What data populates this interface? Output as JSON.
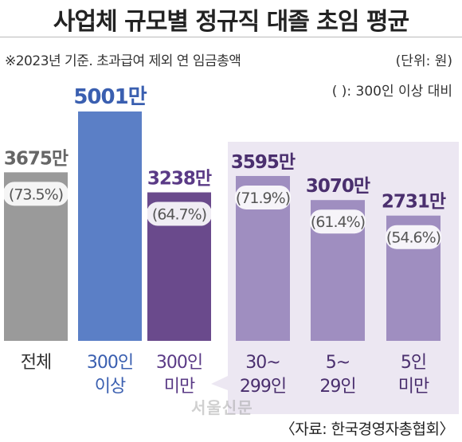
{
  "title": "사업체 규모별 정규직 대졸 초임 평균",
  "subtitle": "※2023년 기준. 초과급여 제외 연 임금총액",
  "unit_note": "(단위: 원)",
  "compare_note": "( ): 300인 이상 대비",
  "source": "〈자료: 한국경영자총협회〉",
  "watermark": "서울신문",
  "colors": {
    "overall": "#9a9a9a",
    "large": "#5b7fc6",
    "small_group": "#6a4a8c",
    "subgroup": "#9f8ec0",
    "panel": "#ece7f2",
    "ratio_pill": "#ffffff"
  },
  "chart_data": {
    "type": "bar",
    "categories": [
      "전체",
      "300인 이상",
      "300인 미만",
      "30~299인",
      "5~29인",
      "5인 미만"
    ],
    "category_lines": [
      [
        "전체"
      ],
      [
        "300인",
        "이상"
      ],
      [
        "300인",
        "미만"
      ],
      [
        "30~",
        "299인"
      ],
      [
        "5~",
        "29인"
      ],
      [
        "5인",
        "미만"
      ]
    ],
    "values": [
      3675,
      5001,
      3238,
      3595,
      3070,
      2731
    ],
    "value_labels": [
      "3675만",
      "5001만",
      "3238만",
      "3595만",
      "3070만",
      "2731만"
    ],
    "ratio_labels": [
      "(73.5%)",
      "",
      "(64.7%)",
      "(71.9%)",
      "(61.4%)",
      "(54.6%)"
    ],
    "ratios_percent": [
      73.5,
      100,
      64.7,
      71.9,
      61.4,
      54.6
    ],
    "unit": "만원",
    "ylim": [
      0,
      5001
    ],
    "grid": false,
    "highlight_panel": "30~299인 to 5인 미만 (breakdown of 300인 미만)"
  }
}
